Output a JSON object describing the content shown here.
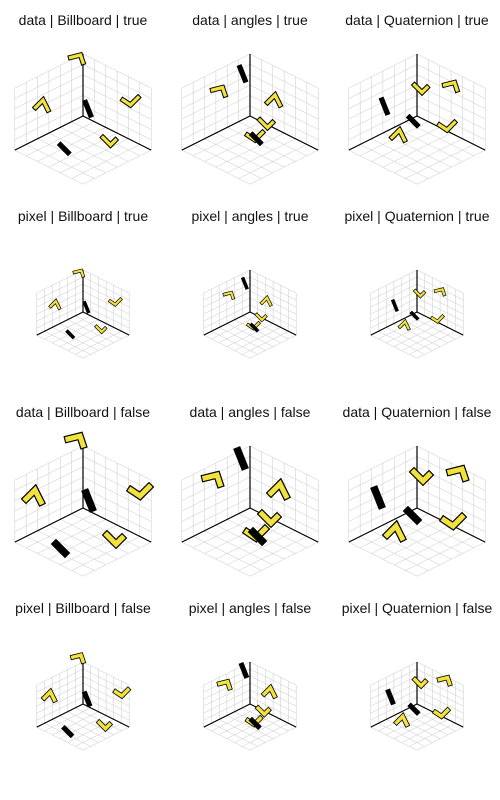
{
  "panels": [
    {
      "title": "data | Billboard | true",
      "space": "data",
      "mode": "Billboard",
      "flag": true
    },
    {
      "title": "data | angles | true",
      "space": "data",
      "mode": "angles",
      "flag": true
    },
    {
      "title": "data | Quaternion | true",
      "space": "data",
      "mode": "Quaternion",
      "flag": true
    },
    {
      "title": "pixel | Billboard | true",
      "space": "pixel",
      "mode": "Billboard",
      "flag": true
    },
    {
      "title": "pixel | angles | true",
      "space": "pixel",
      "mode": "angles",
      "flag": true
    },
    {
      "title": "pixel | Quaternion | true",
      "space": "pixel",
      "mode": "Quaternion",
      "flag": true
    },
    {
      "title": "data | Billboard | false",
      "space": "data",
      "mode": "Billboard",
      "flag": false
    },
    {
      "title": "data | angles | false",
      "space": "data",
      "mode": "angles",
      "flag": false
    },
    {
      "title": "data | Quaternion | false",
      "space": "data",
      "mode": "Quaternion",
      "flag": false
    },
    {
      "title": "pixel | Billboard | false",
      "space": "pixel",
      "mode": "Billboard",
      "flag": false
    },
    {
      "title": "pixel | angles | false",
      "space": "pixel",
      "mode": "angles",
      "flag": false
    },
    {
      "title": "pixel | Quaternion | false",
      "space": "pixel",
      "mode": "Quaternion",
      "flag": false
    }
  ],
  "colors": {
    "marker_fill": "#f2e33c",
    "marker_stroke": "#000000",
    "axis": "#000000",
    "grid": "#c8c8c8",
    "title": "#111111"
  }
}
